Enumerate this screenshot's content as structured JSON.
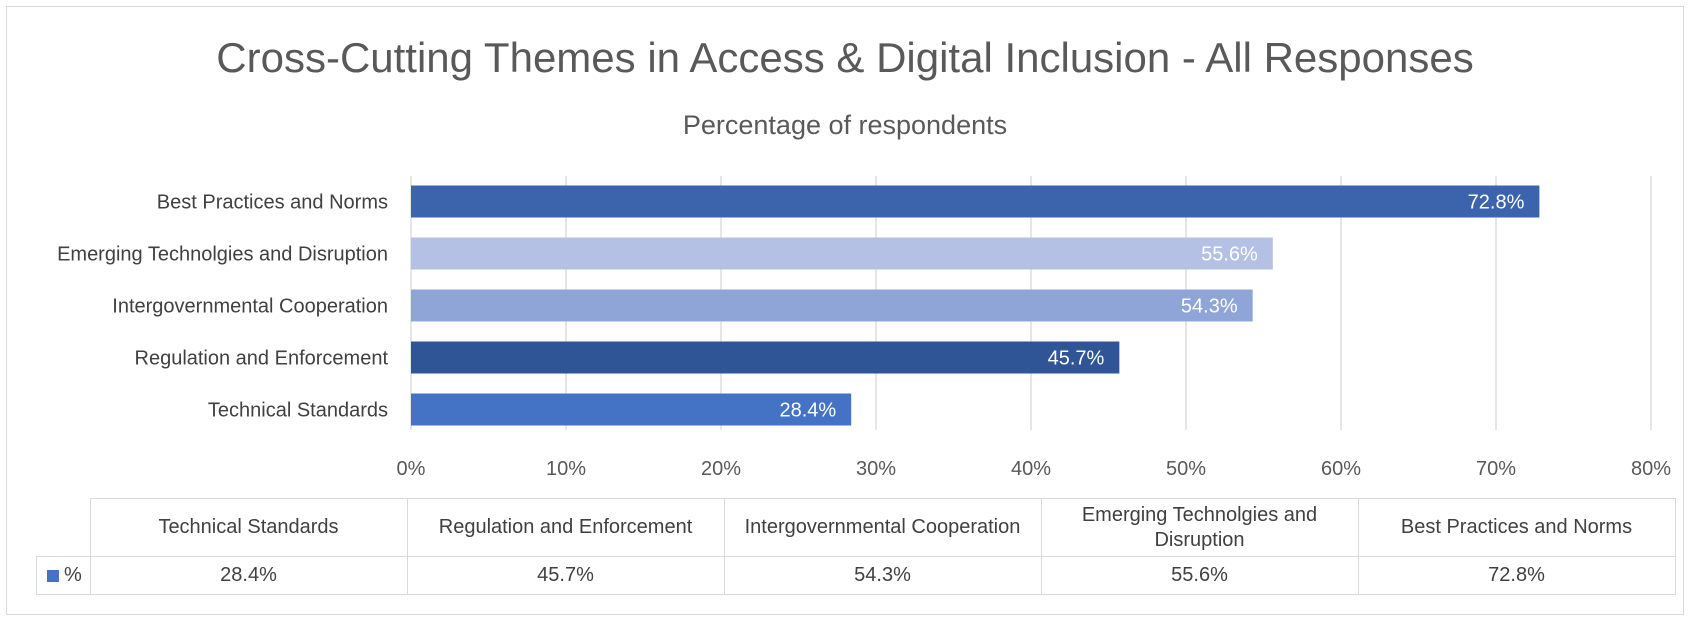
{
  "colors": {
    "technical_standards": "#4472c4",
    "regulation_and_enforcement": "#2f5597",
    "intergovernmental_cooperation": "#8fa5d7",
    "emerging_technologies": "#b4c0e4",
    "best_practices": "#3c64ad",
    "legend_key": "#4472c4"
  },
  "chart_data": {
    "type": "bar",
    "orientation": "horizontal",
    "title": "Cross-Cutting Themes in Access & Digital Inclusion - All Responses",
    "subtitle": "Percentage of respondents",
    "categories": [
      "Best Practices and Norms",
      "Emerging Technolgies and Disruption",
      "Intergovernmental Cooperation",
      "Regulation and Enforcement",
      "Technical Standards"
    ],
    "values": [
      72.8,
      55.6,
      54.3,
      45.7,
      28.4
    ],
    "data_labels": [
      "72.8%",
      "55.6%",
      "54.3%",
      "45.7%",
      "28.4%"
    ],
    "xlim": [
      0,
      80
    ],
    "x_ticks": [
      "0%",
      "10%",
      "20%",
      "30%",
      "40%",
      "50%",
      "60%",
      "70%",
      "80%"
    ],
    "grid": true,
    "legend": "data table below chart"
  },
  "data_table": {
    "headers": [
      "Technical Standards",
      "Regulation and Enforcement",
      "Intergovernmental Cooperation",
      "Emerging Technolgies and Disruption",
      "Best Practices and Norms"
    ],
    "series_name": "%",
    "values": [
      "28.4%",
      "45.7%",
      "54.3%",
      "55.6%",
      "72.8%"
    ]
  }
}
